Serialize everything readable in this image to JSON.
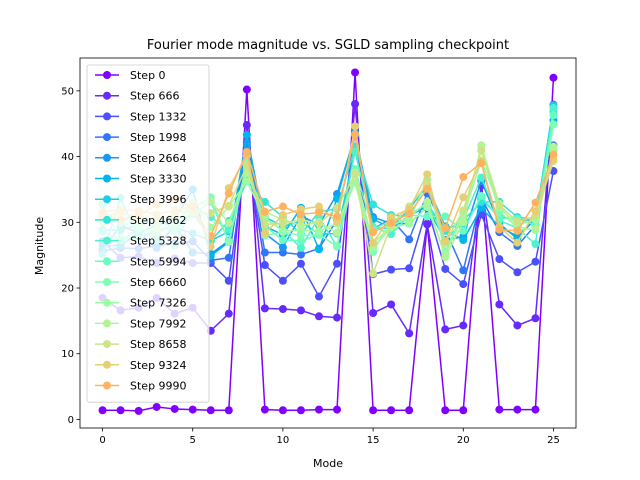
{
  "chart_data": {
    "type": "line",
    "title": "Fourier mode magnitude vs. SGLD sampling checkpoint",
    "xlabel": "Mode",
    "ylabel": "Magnitude",
    "xlim": [
      -1.25,
      26.25
    ],
    "ylim": [
      -1.3,
      55.0
    ],
    "xticks": [
      0,
      5,
      10,
      15,
      20,
      25
    ],
    "yticks": [
      0,
      10,
      20,
      30,
      40,
      50
    ],
    "legend_position": "upper-left",
    "marker": "circle",
    "x": [
      0,
      1,
      2,
      3,
      4,
      5,
      6,
      7,
      8,
      9,
      10,
      11,
      12,
      13,
      14,
      15,
      16,
      17,
      18,
      19,
      20,
      21,
      22,
      23,
      24,
      25
    ],
    "series": [
      {
        "name": "Step 0",
        "color": "#8000ff",
        "values": [
          1.4,
          1.4,
          1.3,
          1.9,
          1.6,
          1.5,
          1.4,
          1.4,
          50.2,
          1.5,
          1.4,
          1.4,
          1.5,
          1.5,
          52.8,
          1.4,
          1.4,
          1.4,
          29.7,
          1.4,
          1.4,
          36.4,
          1.5,
          1.5,
          1.5,
          52.0
        ]
      },
      {
        "name": "Step 666",
        "color": "#6629fe",
        "values": [
          18.5,
          16.6,
          17.0,
          18.5,
          16.1,
          17.0,
          13.5,
          16.1,
          44.8,
          16.9,
          16.8,
          16.6,
          15.7,
          15.5,
          48.0,
          16.2,
          17.5,
          13.1,
          29.8,
          13.7,
          14.3,
          35.6,
          17.5,
          14.3,
          15.4,
          47.9
        ]
      },
      {
        "name": "Step 1332",
        "color": "#4c50fc",
        "values": [
          27.1,
          24.6,
          24.8,
          23.8,
          24.5,
          23.8,
          23.8,
          21.1,
          41.1,
          23.5,
          21.1,
          23.7,
          18.7,
          23.7,
          43.8,
          22.1,
          22.8,
          23.0,
          32.2,
          22.9,
          20.6,
          31.2,
          24.4,
          22.4,
          24.0,
          37.8
        ]
      },
      {
        "name": "Step 1998",
        "color": "#3176f8",
        "values": [
          25.6,
          26.1,
          26.0,
          26.4,
          26.8,
          27.1,
          24.2,
          24.6,
          42.2,
          25.4,
          25.4,
          25.1,
          26.0,
          30.4,
          44.0,
          29.0,
          30.5,
          27.4,
          34.4,
          28.9,
          22.7,
          33.7,
          28.5,
          26.4,
          29.6,
          41.7
        ]
      },
      {
        "name": "Step 2664",
        "color": "#1996f3",
        "values": [
          25.8,
          29.5,
          28.4,
          26.1,
          29.6,
          25.4,
          25.2,
          27.2,
          41.8,
          28.3,
          26.2,
          31.0,
          29.6,
          34.3,
          43.2,
          30.8,
          29.8,
          29.8,
          32.3,
          27.3,
          27.8,
          36.3,
          29.8,
          27.5,
          30.7,
          40.9
        ]
      },
      {
        "name": "Step 3330",
        "color": "#00b5eb",
        "values": [
          26.4,
          26.5,
          28.4,
          29.6,
          30.4,
          35.0,
          24.9,
          27.0,
          43.3,
          29.4,
          28.1,
          32.2,
          25.9,
          33.6,
          43.5,
          30.5,
          29.1,
          31.0,
          32.4,
          28.8,
          27.3,
          32.2,
          29.3,
          27.9,
          30.4,
          45.5
        ]
      },
      {
        "name": "Step 3996",
        "color": "#1acfe3",
        "values": [
          28.8,
          28.8,
          29.6,
          30.4,
          29.2,
          28.3,
          27.2,
          28.6,
          37.1,
          30.8,
          29.4,
          30.1,
          28.2,
          28.3,
          40.9,
          29.1,
          29.1,
          32.0,
          35.6,
          29.4,
          29.2,
          33.6,
          30.8,
          30.5,
          30.2,
          47.8
        ]
      },
      {
        "name": "Step 4662",
        "color": "#31e3d8",
        "values": [
          25.1,
          33.7,
          27.6,
          28.7,
          29.4,
          31.6,
          27.2,
          30.2,
          36.3,
          33.1,
          30.8,
          28.2,
          31.6,
          32.1,
          41.5,
          32.7,
          31.1,
          30.9,
          32.9,
          28.7,
          30.3,
          33.1,
          33.1,
          30.8,
          30.4,
          46.8
        ]
      },
      {
        "name": "Step 5328",
        "color": "#4df3ce",
        "values": [
          28.6,
          27.3,
          28.8,
          27.3,
          26.5,
          32.4,
          30.8,
          28.9,
          38.1,
          30.6,
          28.8,
          26.1,
          30.8,
          26.3,
          40.8,
          29.3,
          28.2,
          31.0,
          33.0,
          27.1,
          30.4,
          36.8,
          30.3,
          29.1,
          26.7,
          47.4
        ]
      },
      {
        "name": "Step 5994",
        "color": "#66fcc2",
        "values": [
          32.7,
          27.6,
          27.5,
          29.1,
          28.8,
          31.2,
          33.1,
          27.1,
          38.0,
          29.4,
          27.3,
          27.2,
          28.1,
          26.4,
          38.1,
          28.9,
          30.3,
          31.1,
          30.9,
          30.9,
          28.7,
          34.0,
          30.6,
          30.5,
          29.6,
          46.3
        ]
      },
      {
        "name": "Step 6660",
        "color": "#80ffb4",
        "values": [
          31.6,
          29.9,
          29.2,
          28.2,
          29.8,
          32.3,
          33.8,
          27.0,
          39.1,
          28.0,
          28.5,
          28.0,
          28.1,
          26.4,
          37.5,
          25.5,
          30.4,
          30.3,
          36.5,
          25.6,
          31.5,
          41.0,
          31.6,
          29.3,
          28.8,
          44.9
        ]
      },
      {
        "name": "Step 7326",
        "color": "#9afca3",
        "values": [
          30.0,
          30.2,
          29.8,
          28.8,
          29.7,
          32.9,
          29.2,
          32.4,
          36.2,
          30.7,
          28.7,
          28.8,
          28.7,
          29.8,
          36.0,
          26.1,
          29.2,
          29.8,
          32.3,
          25.2,
          30.9,
          39.4,
          32.3,
          29.6,
          30.4,
          40.8
        ]
      },
      {
        "name": "Step 7992",
        "color": "#b4f396",
        "values": [
          30.7,
          31.7,
          30.4,
          30.5,
          31.1,
          32.5,
          33.2,
          29.9,
          37.5,
          31.6,
          30.4,
          29.5,
          30.0,
          28.4,
          37.6,
          26.8,
          29.4,
          30.8,
          33.1,
          24.7,
          30.0,
          41.7,
          32.8,
          28.8,
          29.0,
          41.5
        ]
      },
      {
        "name": "Step 8658",
        "color": "#cde385",
        "values": [
          31.1,
          31.2,
          31.1,
          29.9,
          31.5,
          31.6,
          31.4,
          32.5,
          38.6,
          29.7,
          29.8,
          30.4,
          29.8,
          32.2,
          37.3,
          22.2,
          29.6,
          32.4,
          35.8,
          26.9,
          31.8,
          40.9,
          32.6,
          30.1,
          30.9,
          39.3
        ]
      },
      {
        "name": "Step 9324",
        "color": "#e6cf73",
        "values": [
          31.6,
          31.9,
          31.8,
          31.2,
          31.8,
          32.5,
          26.3,
          35.2,
          40.1,
          28.3,
          31.1,
          32.0,
          32.4,
          30.1,
          44.6,
          26.9,
          30.8,
          32.0,
          37.3,
          27.1,
          33.8,
          39.2,
          29.3,
          26.9,
          31.7,
          39.6
        ]
      },
      {
        "name": "Step 9990",
        "color": "#ffb360",
        "values": [
          31.3,
          30.4,
          31.0,
          32.7,
          33.4,
          32.3,
          27.9,
          34.4,
          40.7,
          31.6,
          32.4,
          31.2,
          31.5,
          30.9,
          43.4,
          28.5,
          29.9,
          31.3,
          35.1,
          29.1,
          36.9,
          39.0,
          28.9,
          28.7,
          33.0,
          40.3
        ]
      }
    ]
  }
}
